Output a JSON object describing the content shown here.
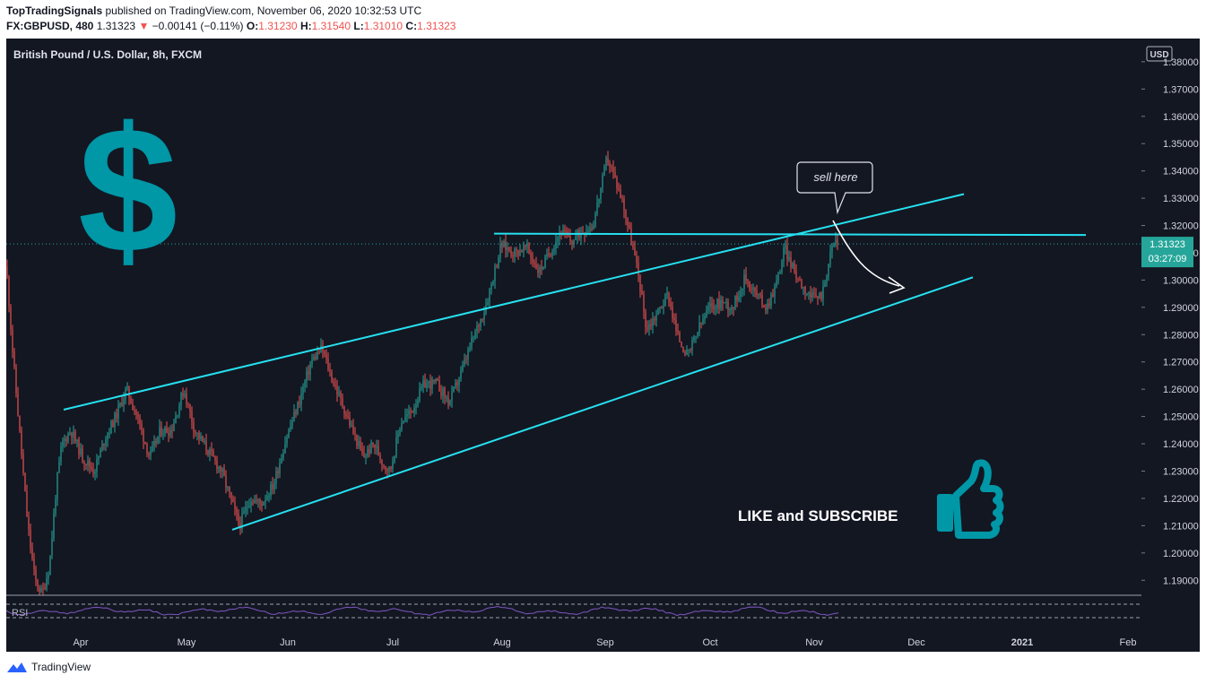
{
  "header": {
    "publisher": "TopTradingSignals",
    "published_text": "published on TradingView.com, November 06, 2020 10:32:53 UTC",
    "symbol": "FX:GBPUSD, 480",
    "last": "1.31323",
    "change_arrow": "▼",
    "change": "−0.00141 (−0.11%)",
    "o_label": "O:",
    "o_value": "1.31230",
    "h_label": "H:",
    "h_value": "1.31540",
    "l_label": "L:",
    "l_value": "1.31010",
    "c_label": "C:",
    "c_value": "1.31323"
  },
  "chart_data": {
    "type": "candlestick",
    "title": "British Pound / U.S. Dollar, 8h, FXCM",
    "currency": "USD",
    "y_ticks": [
      "1.38000",
      "1.37000",
      "1.36000",
      "1.35000",
      "1.34000",
      "1.33000",
      "1.32000",
      "1.31000",
      "1.30000",
      "1.29000",
      "1.28000",
      "1.27000",
      "1.26000",
      "1.25000",
      "1.24000",
      "1.23000",
      "1.22000",
      "1.21000",
      "1.20000",
      "1.19000"
    ],
    "x_ticks": [
      "Apr",
      "May",
      "Jun",
      "Jul",
      "Aug",
      "Sep",
      "Oct",
      "Nov",
      "Dec",
      "2021",
      "Feb"
    ],
    "ylim": [
      1.1845,
      1.3885
    ],
    "last_price": "1.31323",
    "countdown": "03:27:09",
    "price_path": [
      {
        "x": 0,
        "y": 1.305
      },
      {
        "x": 8,
        "y": 1.27
      },
      {
        "x": 16,
        "y": 1.24
      },
      {
        "x": 24,
        "y": 1.21
      },
      {
        "x": 32,
        "y": 1.19
      },
      {
        "x": 40,
        "y": 1.185
      },
      {
        "x": 48,
        "y": 1.195
      },
      {
        "x": 56,
        "y": 1.225
      },
      {
        "x": 62,
        "y": 1.24
      },
      {
        "x": 72,
        "y": 1.245
      },
      {
        "x": 85,
        "y": 1.235
      },
      {
        "x": 98,
        "y": 1.23
      },
      {
        "x": 110,
        "y": 1.242
      },
      {
        "x": 122,
        "y": 1.25
      },
      {
        "x": 134,
        "y": 1.26
      },
      {
        "x": 146,
        "y": 1.25
      },
      {
        "x": 160,
        "y": 1.235
      },
      {
        "x": 172,
        "y": 1.245
      },
      {
        "x": 184,
        "y": 1.245
      },
      {
        "x": 198,
        "y": 1.26
      },
      {
        "x": 210,
        "y": 1.245
      },
      {
        "x": 224,
        "y": 1.238
      },
      {
        "x": 240,
        "y": 1.23
      },
      {
        "x": 252,
        "y": 1.218
      },
      {
        "x": 260,
        "y": 1.21
      },
      {
        "x": 272,
        "y": 1.22
      },
      {
        "x": 284,
        "y": 1.218
      },
      {
        "x": 298,
        "y": 1.225
      },
      {
        "x": 312,
        "y": 1.242
      },
      {
        "x": 326,
        "y": 1.255
      },
      {
        "x": 340,
        "y": 1.27
      },
      {
        "x": 352,
        "y": 1.275
      },
      {
        "x": 362,
        "y": 1.265
      },
      {
        "x": 374,
        "y": 1.255
      },
      {
        "x": 386,
        "y": 1.245
      },
      {
        "x": 398,
        "y": 1.235
      },
      {
        "x": 410,
        "y": 1.24
      },
      {
        "x": 420,
        "y": 1.233
      },
      {
        "x": 428,
        "y": 1.23
      },
      {
        "x": 440,
        "y": 1.248
      },
      {
        "x": 452,
        "y": 1.252
      },
      {
        "x": 466,
        "y": 1.262
      },
      {
        "x": 480,
        "y": 1.262
      },
      {
        "x": 494,
        "y": 1.255
      },
      {
        "x": 506,
        "y": 1.265
      },
      {
        "x": 520,
        "y": 1.278
      },
      {
        "x": 534,
        "y": 1.29
      },
      {
        "x": 542,
        "y": 1.3
      },
      {
        "x": 552,
        "y": 1.313
      },
      {
        "x": 566,
        "y": 1.31
      },
      {
        "x": 580,
        "y": 1.312
      },
      {
        "x": 594,
        "y": 1.303
      },
      {
        "x": 606,
        "y": 1.31
      },
      {
        "x": 618,
        "y": 1.318
      },
      {
        "x": 630,
        "y": 1.314
      },
      {
        "x": 642,
        "y": 1.318
      },
      {
        "x": 654,
        "y": 1.32
      },
      {
        "x": 664,
        "y": 1.335
      },
      {
        "x": 670,
        "y": 1.345
      },
      {
        "x": 678,
        "y": 1.338
      },
      {
        "x": 688,
        "y": 1.328
      },
      {
        "x": 698,
        "y": 1.313
      },
      {
        "x": 706,
        "y": 1.3
      },
      {
        "x": 714,
        "y": 1.282
      },
      {
        "x": 726,
        "y": 1.288
      },
      {
        "x": 738,
        "y": 1.295
      },
      {
        "x": 748,
        "y": 1.28
      },
      {
        "x": 760,
        "y": 1.272
      },
      {
        "x": 772,
        "y": 1.282
      },
      {
        "x": 784,
        "y": 1.29
      },
      {
        "x": 798,
        "y": 1.292
      },
      {
        "x": 810,
        "y": 1.29
      },
      {
        "x": 824,
        "y": 1.301
      },
      {
        "x": 836,
        "y": 1.295
      },
      {
        "x": 848,
        "y": 1.29
      },
      {
        "x": 860,
        "y": 1.3
      },
      {
        "x": 868,
        "y": 1.312
      },
      {
        "x": 876,
        "y": 1.305
      },
      {
        "x": 888,
        "y": 1.298
      },
      {
        "x": 900,
        "y": 1.293
      },
      {
        "x": 910,
        "y": 1.295
      },
      {
        "x": 918,
        "y": 1.308
      },
      {
        "x": 924,
        "y": 1.315
      },
      {
        "x": 928,
        "y": 1.3132
      }
    ],
    "drawings": [
      {
        "name": "upper-channel-line",
        "color": "#26e0f0",
        "x1": 64,
        "y1": 1.2525,
        "x2": 1068,
        "y2": 1.3315
      },
      {
        "name": "lower-channel-line",
        "color": "#26e0f0",
        "x1": 252,
        "y1": 1.2085,
        "x2": 1078,
        "y2": 1.301
      },
      {
        "name": "resistance-line",
        "color": "#26e0f0",
        "x1": 544,
        "y1": 1.317,
        "x2": 1204,
        "y2": 1.3165
      }
    ],
    "annotations": {
      "callout": "sell here",
      "cta": "LIKE and SUBSCRIBE",
      "dollar_symbol": "$",
      "rsi_label": "RSI"
    },
    "colors": {
      "background": "#131722",
      "up": "#26a69a",
      "down": "#ef5350",
      "drawing": "#26e0f0",
      "accent": "#0097a7",
      "rsi": "#7e57c2",
      "last_price_bg": "#26a69a"
    }
  },
  "footer": {
    "brand": "TradingView"
  }
}
